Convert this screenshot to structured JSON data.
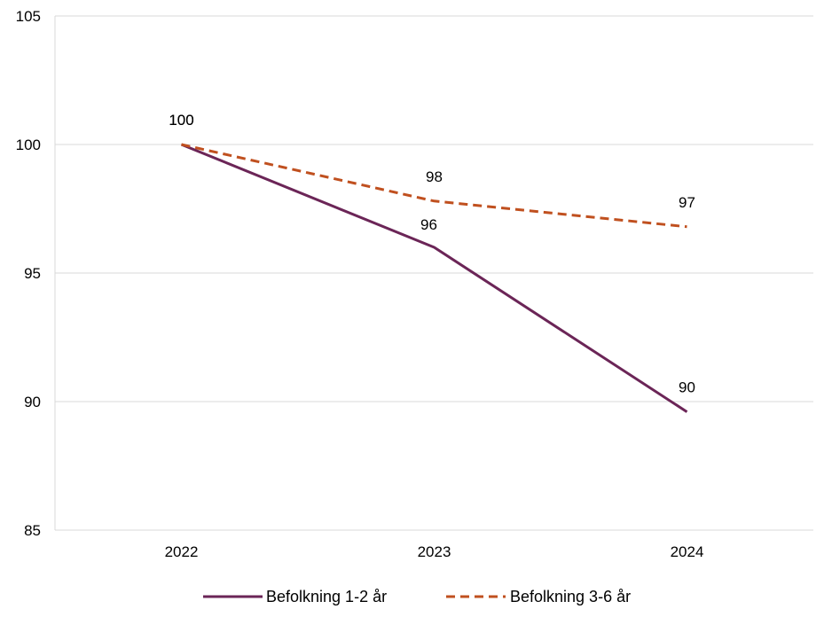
{
  "chart_data": {
    "type": "line",
    "title": "",
    "xlabel": "",
    "ylabel": "",
    "categories": [
      "2022",
      "2023",
      "2024"
    ],
    "ylim": [
      85,
      105
    ],
    "yticks": [
      "85",
      "90",
      "95",
      "100",
      "105"
    ],
    "grid": "horizontal",
    "legend_position": "bottom",
    "series": [
      {
        "name": "Befolkning 1-2 år",
        "values": [
          100,
          96,
          89.6
        ],
        "labels": [
          "100",
          "96",
          "90"
        ],
        "color": "#6b2557",
        "style": "solid"
      },
      {
        "name": "Befolkning 3-6 år",
        "values": [
          100,
          97.8,
          96.8
        ],
        "labels": [
          "100",
          "98",
          "97"
        ],
        "color": "#c0501f",
        "style": "dashed"
      }
    ]
  }
}
